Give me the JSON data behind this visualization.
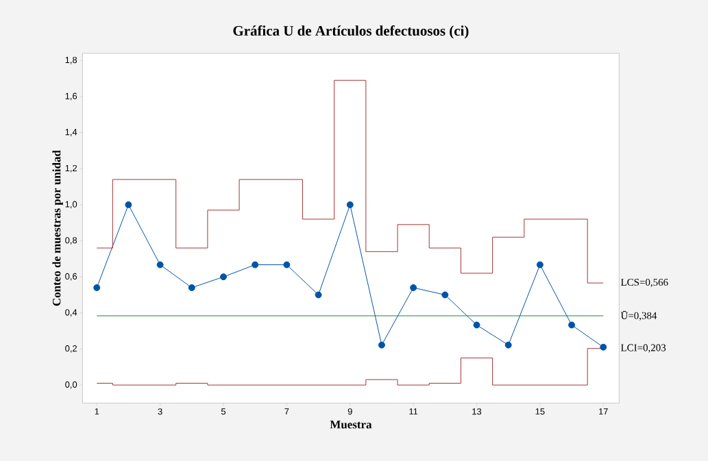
{
  "chart_data": {
    "type": "line",
    "title": "Gráfica U de Artículos defectuosos (ci)",
    "xlabel": "Muestra",
    "ylabel": "Conteo de muestras por unidad",
    "x": [
      1,
      2,
      3,
      4,
      5,
      6,
      7,
      8,
      9,
      10,
      11,
      12,
      13,
      14,
      15,
      16,
      17
    ],
    "series": [
      {
        "color": "#0054a6",
        "marker": "circle",
        "values": [
          0.54,
          1.0,
          0.667,
          0.54,
          0.6,
          0.667,
          0.667,
          0.5,
          1.0,
          0.222,
          0.54,
          0.5,
          0.333,
          0.222,
          0.667,
          0.333,
          0.21
        ]
      },
      {
        "type": "step",
        "name": "LCS=0,566",
        "color": "#a83232",
        "marker": "none",
        "values": [
          0.76,
          1.14,
          1.14,
          0.76,
          0.97,
          1.14,
          1.14,
          0.92,
          1.69,
          0.74,
          0.89,
          0.76,
          0.62,
          0.82,
          0.92,
          0.92,
          0.566
        ]
      },
      {
        "type": "step",
        "name": "LCI=0,203",
        "color": "#a83232",
        "marker": "none",
        "values": [
          0.01,
          0,
          0,
          0.01,
          0,
          0,
          0,
          0,
          0,
          0.03,
          0,
          0.01,
          0.15,
          0,
          0,
          0,
          0.203
        ]
      }
    ],
    "ref_lines": [
      {
        "axis": "y",
        "value": 0.384,
        "label": "Ū=0,384",
        "color": "#1a8a2a"
      }
    ],
    "xlim": [
      0.55,
      17.5
    ],
    "ylim": [
      -0.1,
      1.84
    ],
    "xticks": [
      1,
      3,
      5,
      7,
      9,
      11,
      13,
      15,
      17
    ],
    "yticks": [
      {
        "value": 0,
        "label": "0,0"
      },
      {
        "value": 0.2,
        "label": "0,2"
      },
      {
        "value": 0.4,
        "label": "0,4"
      },
      {
        "value": 0.6,
        "label": "0,6"
      },
      {
        "value": 0.8,
        "label": "0,8"
      },
      {
        "value": 1.0,
        "label": "1,0"
      },
      {
        "value": 1.2,
        "label": "1,2"
      },
      {
        "value": 1.4,
        "label": "1,4"
      },
      {
        "value": 1.6,
        "label": "1,6"
      },
      {
        "value": 1.8,
        "label": "1,8"
      }
    ],
    "grid": false,
    "line_style": "solid"
  }
}
